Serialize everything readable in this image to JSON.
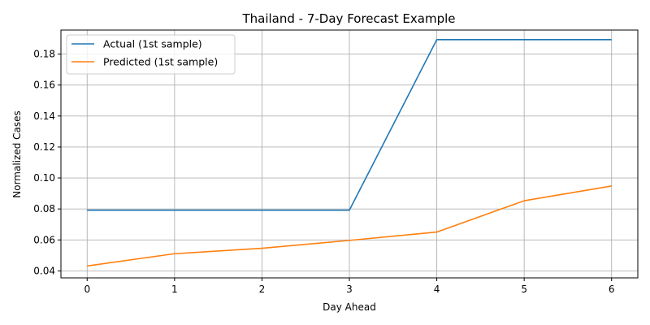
{
  "chart_data": {
    "type": "line",
    "title": "Thailand - 7-Day Forecast Example",
    "xlabel": "Day Ahead",
    "ylabel": "Normalized Cases",
    "x": [
      0,
      1,
      2,
      3,
      4,
      5,
      6
    ],
    "xlim": [
      -0.3,
      6.3
    ],
    "ylim": [
      0.0355,
      0.1955
    ],
    "xticks": [
      0,
      1,
      2,
      3,
      4,
      5,
      6
    ],
    "yticks": [
      0.04,
      0.06,
      0.08,
      0.1,
      0.12,
      0.14,
      0.16,
      0.18
    ],
    "ytick_labels": [
      "0.04",
      "0.06",
      "0.08",
      "0.10",
      "0.12",
      "0.14",
      "0.16",
      "0.18"
    ],
    "grid": true,
    "legend_position": "top-left",
    "series": [
      {
        "name": "Actual (1st sample)",
        "color": "#1f77b4",
        "values": [
          0.0792,
          0.0792,
          0.0792,
          0.0792,
          0.1893,
          0.1893,
          0.1893
        ]
      },
      {
        "name": "Predicted (1st sample)",
        "color": "#ff7f0e",
        "values": [
          0.0432,
          0.0511,
          0.0546,
          0.0597,
          0.0651,
          0.0853,
          0.0948
        ]
      }
    ]
  }
}
